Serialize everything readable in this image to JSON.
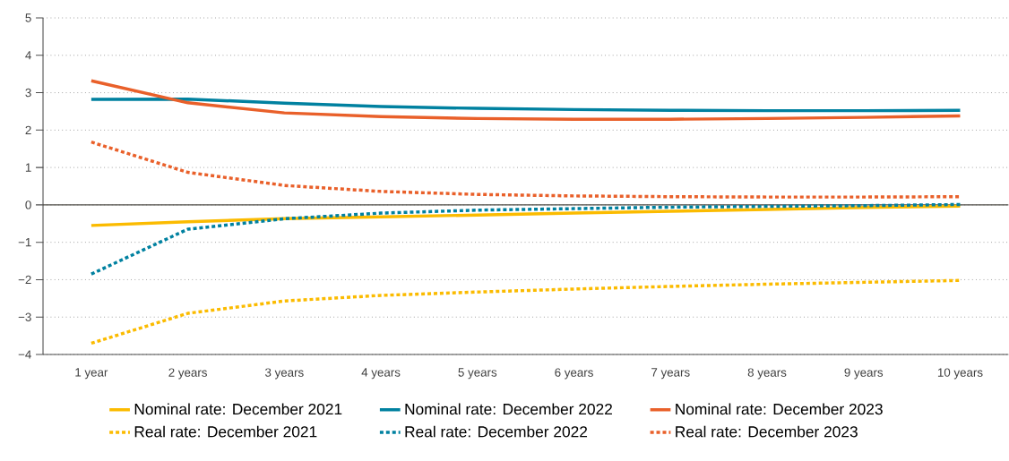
{
  "chart_data": {
    "type": "line",
    "categories": [
      "1 year",
      "2 years",
      "3 years",
      "4 years",
      "5 years",
      "6 years",
      "7 years",
      "8 years",
      "9 years",
      "10 years"
    ],
    "series": [
      {
        "name": "Nominal rate: December 2021",
        "color": "#fbbb00",
        "line_style": "solid",
        "values": [
          -0.55,
          -0.45,
          -0.37,
          -0.32,
          -0.27,
          -0.22,
          -0.17,
          -0.12,
          -0.07,
          -0.03
        ]
      },
      {
        "name": "Nominal rate: December 2022",
        "color": "#0081a0",
        "line_style": "solid",
        "values": [
          2.82,
          2.83,
          2.72,
          2.63,
          2.58,
          2.55,
          2.53,
          2.52,
          2.52,
          2.53
        ]
      },
      {
        "name": "Nominal rate: December 2023",
        "color": "#e9602a",
        "line_style": "solid",
        "values": [
          3.32,
          2.73,
          2.46,
          2.36,
          2.31,
          2.29,
          2.29,
          2.31,
          2.34,
          2.38
        ]
      },
      {
        "name": "Real rate: December 2021",
        "color": "#fbbb00",
        "line_style": "dotted",
        "values": [
          -3.7,
          -2.9,
          -2.57,
          -2.42,
          -2.33,
          -2.25,
          -2.18,
          -2.12,
          -2.07,
          -2.02
        ]
      },
      {
        "name": "Real rate: December 2022",
        "color": "#0081a0",
        "line_style": "dotted",
        "values": [
          -1.85,
          -0.65,
          -0.37,
          -0.22,
          -0.14,
          -0.1,
          -0.06,
          -0.04,
          -0.02,
          0.01
        ]
      },
      {
        "name": "Real rate: December 2023",
        "color": "#e9602a",
        "line_style": "dotted",
        "values": [
          1.68,
          0.87,
          0.52,
          0.36,
          0.28,
          0.24,
          0.22,
          0.21,
          0.21,
          0.22
        ]
      }
    ],
    "ylim": [
      -4,
      5
    ],
    "yticks": [
      {
        "value": -4,
        "label": "−4"
      },
      {
        "value": -3,
        "label": "−3"
      },
      {
        "value": -2,
        "label": "−2"
      },
      {
        "value": -1,
        "label": "−1"
      },
      0,
      1,
      2,
      3,
      4,
      5
    ],
    "ref_lines": [
      {
        "axis": "y",
        "value": 0,
        "color": "#4d4a44"
      }
    ],
    "grid": "y",
    "legend": "bottom",
    "marker": "none"
  }
}
